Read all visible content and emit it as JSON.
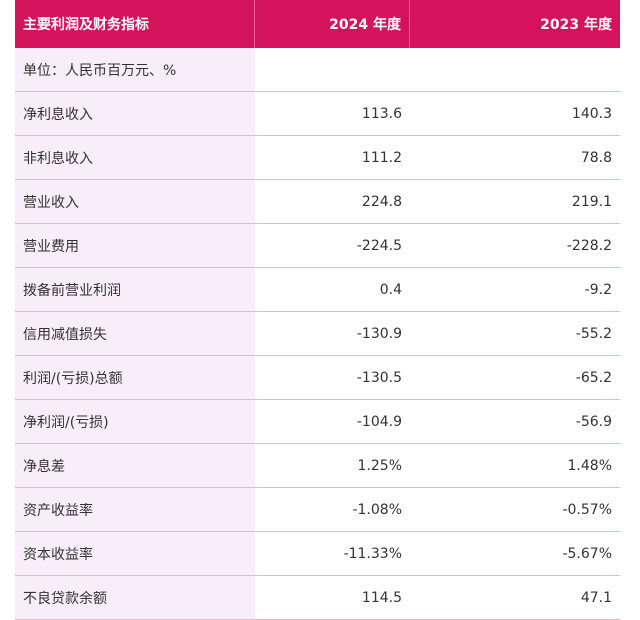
{
  "table": {
    "header": [
      "主要利润及财务指标",
      "2024 年度",
      "2023 年度"
    ],
    "unit": "单位：人民币百万元、%",
    "rows": [
      [
        "净利息收入",
        "113.6",
        "140.3"
      ],
      [
        "非利息收入",
        "111.2",
        "78.8"
      ],
      [
        "营业收入",
        "224.8",
        "219.1"
      ],
      [
        "营业费用",
        "-224.5",
        "-228.2"
      ],
      [
        "拨备前营业利润",
        "0.4",
        "-9.2"
      ],
      [
        "信用减值损失",
        "-130.9",
        "-55.2"
      ],
      [
        "利润/(亏损)总额",
        "-130.5",
        "-65.2"
      ],
      [
        "净利润/(亏损)",
        "-104.9",
        "-56.9"
      ],
      [
        "净息差",
        "1.25%",
        "1.48%"
      ],
      [
        "资产收益率",
        "-1.08%",
        "-0.57%"
      ],
      [
        "资本收益率",
        "-11.33%",
        "-5.67%"
      ],
      [
        "不良贷款余额",
        "114.5",
        "47.1"
      ]
    ]
  }
}
